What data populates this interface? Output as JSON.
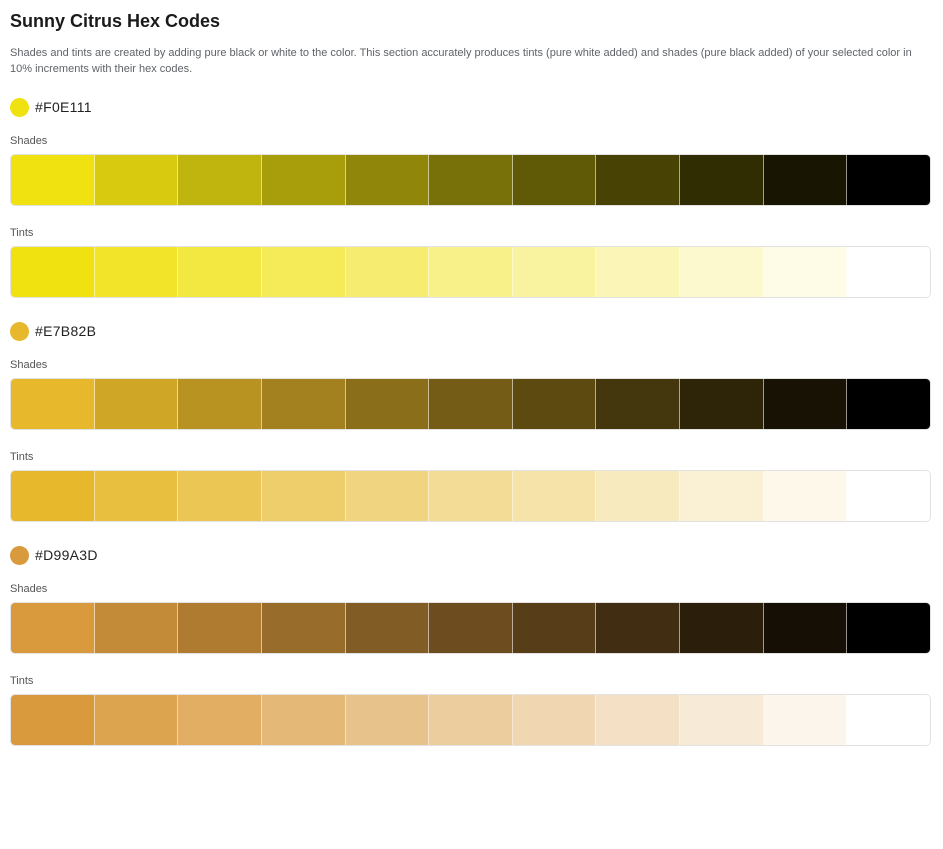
{
  "title": "Sunny Citrus Hex Codes",
  "description": "Shades and tints are created by adding pure black or white to the color. This section accurately produces tints (pure white added) and shades (pure black added) of your selected color in 10% increments with their hex codes.",
  "shades_label": "Shades",
  "tints_label": "Tints",
  "colors": [
    {
      "hex": "#F0E111",
      "shades": [
        "#F0E111",
        "#D8CA0F",
        "#C0B40E",
        "#A89E0C",
        "#90870A",
        "#787109",
        "#605A07",
        "#484305",
        "#302D03",
        "#181602",
        "#000000"
      ],
      "tints": [
        "#F0E111",
        "#F2E429",
        "#F3E741",
        "#F5EA58",
        "#F6ED70",
        "#F8F088",
        "#F9F3A0",
        "#FBF6B8",
        "#FCF9CF",
        "#FEFCE7",
        "#FFFFFF"
      ]
    },
    {
      "hex": "#E7B82B",
      "shades": [
        "#E7B82B",
        "#D0A627",
        "#B99322",
        "#A2811E",
        "#8B6E1A",
        "#745C16",
        "#5C4A11",
        "#45370D",
        "#2E2509",
        "#171204",
        "#000000"
      ],
      "tints": [
        "#E7B82B",
        "#E9BF40",
        "#ECC655",
        "#EECD6B",
        "#F1D480",
        "#F3DC95",
        "#F5E3AA",
        "#F8EABF",
        "#FAF1D5",
        "#FDF8EA",
        "#FFFFFF"
      ]
    },
    {
      "hex": "#D99A3D",
      "shades": [
        "#D99A3D",
        "#C38B37",
        "#AE7B31",
        "#986C2B",
        "#825C25",
        "#6D4D1F",
        "#573E18",
        "#412E12",
        "#2B1F0C",
        "#160F06",
        "#000000"
      ],
      "tints": [
        "#D99A3D",
        "#DDA450",
        "#E1AE64",
        "#E4B877",
        "#E8C28B",
        "#ECCD9E",
        "#F0D7B1",
        "#F4E1C5",
        "#F7EBD8",
        "#FBF5EC",
        "#FFFFFF"
      ]
    }
  ]
}
